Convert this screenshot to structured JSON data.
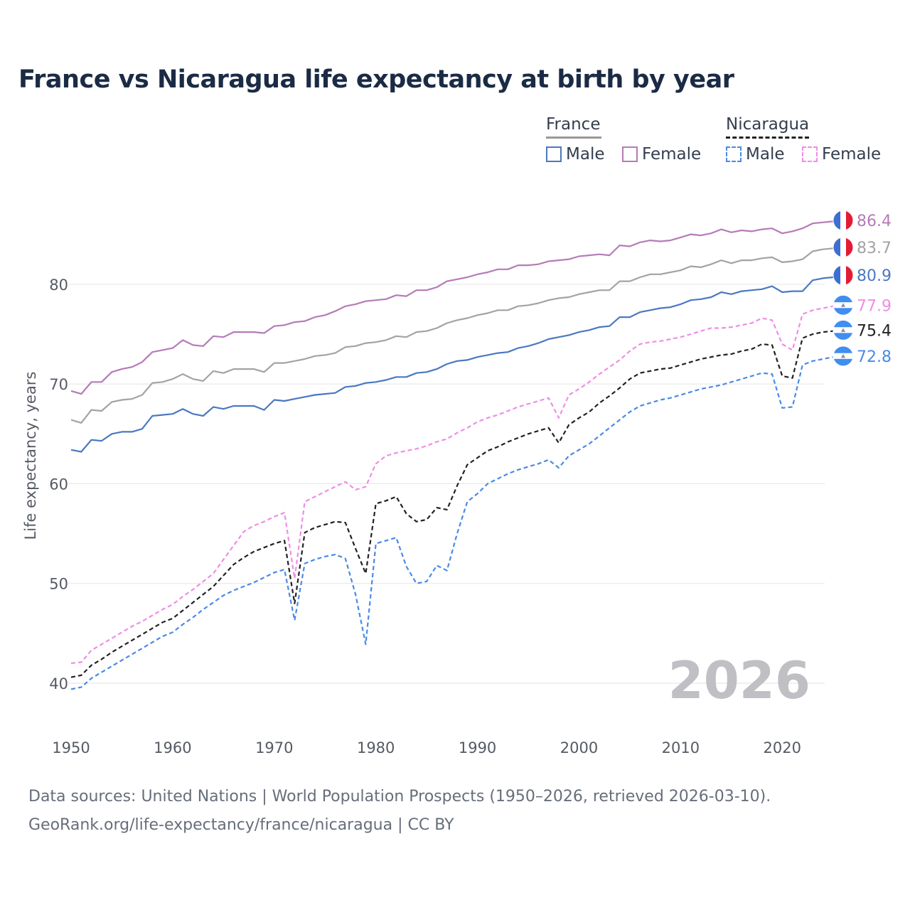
{
  "chart_data": {
    "type": "line",
    "title": "France vs Nicaragua life expectancy at birth by year",
    "ylabel": "Life expectancy, years",
    "xlabel": "",
    "xlim": [
      1950,
      2026
    ],
    "ylim": [
      38,
      89
    ],
    "yticks": [
      40,
      50,
      60,
      70,
      80
    ],
    "xticks": [
      1950,
      1960,
      1970,
      1980,
      1990,
      2000,
      2010,
      2020
    ],
    "current_year": "2026",
    "legend": {
      "groups": [
        {
          "name": "France",
          "items": [
            "Male",
            "Female"
          ]
        },
        {
          "name": "Nicaragua",
          "items": [
            "Male",
            "Female"
          ]
        }
      ]
    },
    "series": [
      {
        "id": "fr-female",
        "country": "France",
        "sex": "Female",
        "color": "#b57bb8",
        "dashed": false,
        "end_label": "86.4",
        "flag": "france",
        "values": [
          69.3,
          69.0,
          70.2,
          70.2,
          71.2,
          71.5,
          71.7,
          72.2,
          73.2,
          73.4,
          73.6,
          74.4,
          73.9,
          73.8,
          74.8,
          74.7,
          75.2,
          75.2,
          75.2,
          75.1,
          75.8,
          75.9,
          76.2,
          76.3,
          76.7,
          76.9,
          77.3,
          77.8,
          78.0,
          78.3,
          78.4,
          78.5,
          78.9,
          78.8,
          79.4,
          79.4,
          79.7,
          80.3,
          80.5,
          80.7,
          81.0,
          81.2,
          81.5,
          81.5,
          81.9,
          81.9,
          82.0,
          82.3,
          82.4,
          82.5,
          82.8,
          82.9,
          83.0,
          82.9,
          83.9,
          83.8,
          84.2,
          84.4,
          84.3,
          84.4,
          84.7,
          85.0,
          84.9,
          85.1,
          85.5,
          85.2,
          85.4,
          85.3,
          85.5,
          85.6,
          85.1,
          85.3,
          85.6,
          86.1,
          86.2,
          86.3,
          86.4
        ]
      },
      {
        "id": "fr-total",
        "country": "France",
        "sex": "Total",
        "color": "#a3a3a3",
        "dashed": false,
        "end_label": "83.7",
        "flag": "france",
        "values": [
          66.4,
          66.1,
          67.4,
          67.3,
          68.2,
          68.4,
          68.5,
          68.9,
          70.1,
          70.2,
          70.5,
          71.0,
          70.5,
          70.3,
          71.3,
          71.1,
          71.5,
          71.5,
          71.5,
          71.2,
          72.1,
          72.1,
          72.3,
          72.5,
          72.8,
          72.9,
          73.1,
          73.7,
          73.8,
          74.1,
          74.2,
          74.4,
          74.8,
          74.7,
          75.2,
          75.3,
          75.6,
          76.1,
          76.4,
          76.6,
          76.9,
          77.1,
          77.4,
          77.4,
          77.8,
          77.9,
          78.1,
          78.4,
          78.6,
          78.7,
          79.0,
          79.2,
          79.4,
          79.4,
          80.3,
          80.3,
          80.7,
          81.0,
          81.0,
          81.2,
          81.4,
          81.8,
          81.7,
          82.0,
          82.4,
          82.1,
          82.4,
          82.4,
          82.6,
          82.7,
          82.2,
          82.3,
          82.5,
          83.3,
          83.5,
          83.6,
          83.7
        ]
      },
      {
        "id": "fr-male",
        "country": "France",
        "sex": "Male",
        "color": "#4a78c2",
        "dashed": false,
        "end_label": "80.9",
        "flag": "france",
        "values": [
          63.4,
          63.2,
          64.4,
          64.3,
          65.0,
          65.2,
          65.2,
          65.5,
          66.8,
          66.9,
          67.0,
          67.5,
          67.0,
          66.8,
          67.7,
          67.5,
          67.8,
          67.8,
          67.8,
          67.4,
          68.4,
          68.3,
          68.5,
          68.7,
          68.9,
          69.0,
          69.1,
          69.7,
          69.8,
          70.1,
          70.2,
          70.4,
          70.7,
          70.7,
          71.1,
          71.2,
          71.5,
          72.0,
          72.3,
          72.4,
          72.7,
          72.9,
          73.1,
          73.2,
          73.6,
          73.8,
          74.1,
          74.5,
          74.7,
          74.9,
          75.2,
          75.4,
          75.7,
          75.8,
          76.7,
          76.7,
          77.2,
          77.4,
          77.6,
          77.7,
          78.0,
          78.4,
          78.5,
          78.7,
          79.2,
          79.0,
          79.3,
          79.4,
          79.5,
          79.8,
          79.2,
          79.3,
          79.3,
          80.4,
          80.6,
          80.7,
          80.9
        ]
      },
      {
        "id": "ni-female",
        "country": "Nicaragua",
        "sex": "Female",
        "color": "#ee8ee6",
        "dashed": true,
        "end_label": "77.9",
        "flag": "nicaragua",
        "values": [
          42.0,
          42.1,
          43.3,
          43.9,
          44.5,
          45.1,
          45.7,
          46.2,
          46.8,
          47.4,
          47.9,
          48.7,
          49.4,
          50.2,
          51.0,
          52.4,
          53.8,
          55.2,
          55.8,
          56.2,
          56.7,
          57.1,
          50.5,
          58.2,
          58.7,
          59.2,
          59.7,
          60.2,
          59.4,
          59.7,
          62.0,
          62.8,
          63.1,
          63.3,
          63.5,
          63.8,
          64.2,
          64.5,
          65.1,
          65.6,
          66.2,
          66.6,
          66.9,
          67.3,
          67.7,
          68.0,
          68.3,
          68.6,
          66.6,
          68.9,
          69.5,
          70.2,
          71.0,
          71.7,
          72.4,
          73.3,
          74.0,
          74.2,
          74.3,
          74.5,
          74.7,
          75.0,
          75.3,
          75.6,
          75.6,
          75.7,
          75.9,
          76.1,
          76.6,
          76.4,
          74.0,
          73.4,
          77.0,
          77.4,
          77.6,
          77.8,
          77.9
        ]
      },
      {
        "id": "ni-total",
        "country": "Nicaragua",
        "sex": "Total",
        "color": "#222222",
        "dashed": true,
        "end_label": "75.4",
        "flag": "nicaragua",
        "values": [
          40.6,
          40.8,
          41.8,
          42.4,
          43.1,
          43.7,
          44.3,
          44.9,
          45.5,
          46.1,
          46.5,
          47.3,
          48.1,
          48.9,
          49.7,
          50.8,
          51.9,
          52.6,
          53.2,
          53.6,
          54.0,
          54.3,
          48.0,
          55.1,
          55.6,
          55.9,
          56.2,
          56.1,
          53.5,
          51.0,
          58.0,
          58.3,
          58.7,
          57.0,
          56.2,
          56.4,
          57.6,
          57.4,
          59.8,
          61.9,
          62.6,
          63.3,
          63.7,
          64.2,
          64.6,
          65.0,
          65.3,
          65.6,
          64.1,
          65.9,
          66.6,
          67.2,
          68.1,
          68.8,
          69.6,
          70.5,
          71.1,
          71.3,
          71.5,
          71.6,
          71.9,
          72.2,
          72.5,
          72.7,
          72.9,
          73.0,
          73.3,
          73.5,
          74.0,
          73.9,
          70.8,
          70.6,
          74.6,
          75.0,
          75.2,
          75.3,
          75.4
        ]
      },
      {
        "id": "ni-male",
        "country": "Nicaragua",
        "sex": "Male",
        "color": "#4a8ae6",
        "dashed": true,
        "end_label": "72.8",
        "flag": "nicaragua",
        "values": [
          39.4,
          39.6,
          40.5,
          41.1,
          41.7,
          42.3,
          42.9,
          43.5,
          44.1,
          44.7,
          45.1,
          45.9,
          46.6,
          47.4,
          48.1,
          48.8,
          49.3,
          49.7,
          50.1,
          50.6,
          51.1,
          51.4,
          46.3,
          52.0,
          52.4,
          52.7,
          52.9,
          52.5,
          48.9,
          43.9,
          54.0,
          54.3,
          54.6,
          51.7,
          50.0,
          50.2,
          51.8,
          51.3,
          55.0,
          58.2,
          59.0,
          60.0,
          60.5,
          61.0,
          61.4,
          61.7,
          62.0,
          62.4,
          61.6,
          62.8,
          63.4,
          64.0,
          64.8,
          65.6,
          66.4,
          67.2,
          67.8,
          68.1,
          68.4,
          68.6,
          68.9,
          69.2,
          69.5,
          69.7,
          69.9,
          70.2,
          70.5,
          70.8,
          71.1,
          71.0,
          67.6,
          67.7,
          71.9,
          72.3,
          72.5,
          72.7,
          72.8
        ]
      }
    ]
  },
  "source_lines": {
    "line1": "Data sources: United Nations | World Population Prospects (1950–2026, retrieved 2026-03-10).",
    "line2": "GeoRank.org/life-expectancy/france/nicaragua | CC BY"
  },
  "flags": {
    "france": {
      "blue": "#3d6fd1",
      "white": "#ffffff",
      "red": "#e31b35"
    },
    "nicaragua": {
      "blue": "#3f8ef0",
      "white": "#ffffff",
      "emblem": "#8a8f98"
    }
  }
}
